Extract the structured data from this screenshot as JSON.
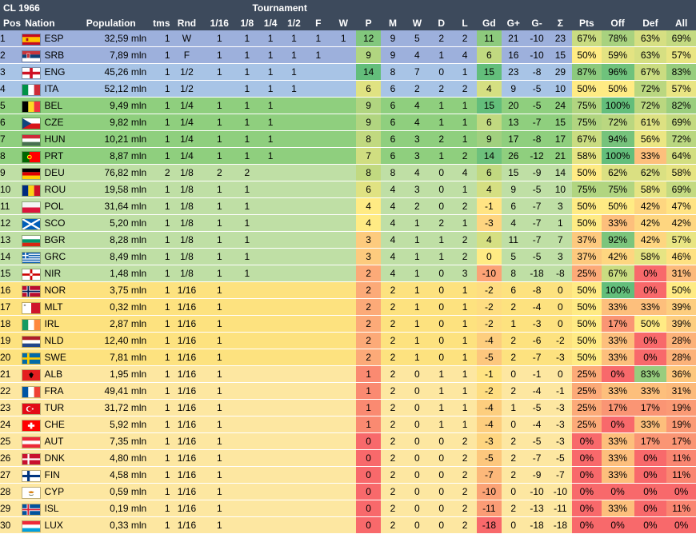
{
  "title": "CL 1966",
  "tournament_label": "Tournament",
  "columns": {
    "pos": "Pos",
    "nation": "Nation",
    "population": "Population",
    "tms": "tms",
    "rnd": "Rnd",
    "r16": "1/16",
    "r8": "1/8",
    "r4": "1/4",
    "r2": "1/2",
    "f": "F",
    "w": "W",
    "p": "P",
    "m": "M",
    "wins": "W",
    "d": "D",
    "l": "L",
    "gd": "Gd",
    "gplus": "G+",
    "gminus": "G-",
    "sigma": "Σ",
    "pts": "Pts",
    "off": "Off",
    "def": "Def",
    "all": "All"
  },
  "colors": {
    "header": "#3d4a5c",
    "tier_final": "#9db0dc",
    "tier_semi": "#a8c4e6",
    "tier_quarter": "#8fcf7e",
    "tier_r8": "#bfdfa5",
    "tier_r16_win": "#fde27f",
    "tier_r16_loss": "#fde7a1",
    "heat_green": "#63be7b",
    "heat_yellow": "#ffeb84",
    "heat_red": "#f8696b"
  },
  "rows": [
    {
      "pos": "1",
      "flag": "flag-spain",
      "nation": "ESP",
      "population": "32,59 mln",
      "tms": "1",
      "rnd": "W",
      "r16": "1",
      "r8": "1",
      "r4": "1",
      "r2": "1",
      "f": "1",
      "w": "1",
      "p": "12",
      "m": "9",
      "wins": "5",
      "d": "2",
      "l": "2",
      "gd": "11",
      "gplus": "21",
      "gminus": "-10",
      "sigma": "23",
      "pts": "67%",
      "off": "78%",
      "def": "63%",
      "all": "69%"
    },
    {
      "pos": "2",
      "flag": "flag-serbia",
      "nation": "SRB",
      "population": "7,89 mln",
      "tms": "1",
      "rnd": "F",
      "r16": "1",
      "r8": "1",
      "r4": "1",
      "r2": "1",
      "f": "1",
      "w": "",
      "p": "9",
      "m": "9",
      "wins": "4",
      "d": "1",
      "l": "4",
      "gd": "6",
      "gplus": "16",
      "gminus": "-10",
      "sigma": "15",
      "pts": "50%",
      "off": "59%",
      "def": "63%",
      "all": "57%"
    },
    {
      "pos": "3",
      "flag": "flag-england",
      "nation": "ENG",
      "population": "45,26 mln",
      "tms": "1",
      "rnd": "1/2",
      "r16": "1",
      "r8": "1",
      "r4": "1",
      "r2": "1",
      "f": "",
      "w": "",
      "p": "14",
      "m": "8",
      "wins": "7",
      "d": "0",
      "l": "1",
      "gd": "15",
      "gplus": "23",
      "gminus": "-8",
      "sigma": "29",
      "pts": "87%",
      "off": "96%",
      "def": "67%",
      "all": "83%"
    },
    {
      "pos": "4",
      "flag": "flag-italy",
      "nation": "ITA",
      "population": "52,12 mln",
      "tms": "1",
      "rnd": "1/2",
      "r16": "",
      "r8": "1",
      "r4": "1",
      "r2": "1",
      "f": "",
      "w": "",
      "p": "6",
      "m": "6",
      "wins": "2",
      "d": "2",
      "l": "2",
      "gd": "4",
      "gplus": "9",
      "gminus": "-5",
      "sigma": "10",
      "pts": "50%",
      "off": "50%",
      "def": "72%",
      "all": "57%"
    },
    {
      "pos": "5",
      "flag": "flag-belgium",
      "nation": "BEL",
      "population": "9,49 mln",
      "tms": "1",
      "rnd": "1/4",
      "r16": "1",
      "r8": "1",
      "r4": "1",
      "r2": "",
      "f": "",
      "w": "",
      "p": "9",
      "m": "6",
      "wins": "4",
      "d": "1",
      "l": "1",
      "gd": "15",
      "gplus": "20",
      "gminus": "-5",
      "sigma": "24",
      "pts": "75%",
      "off": "100%",
      "def": "72%",
      "all": "82%"
    },
    {
      "pos": "6",
      "flag": "flag-czech",
      "nation": "CZE",
      "population": "9,82 mln",
      "tms": "1",
      "rnd": "1/4",
      "r16": "1",
      "r8": "1",
      "r4": "1",
      "r2": "",
      "f": "",
      "w": "",
      "p": "9",
      "m": "6",
      "wins": "4",
      "d": "1",
      "l": "1",
      "gd": "6",
      "gplus": "13",
      "gminus": "-7",
      "sigma": "15",
      "pts": "75%",
      "off": "72%",
      "def": "61%",
      "all": "69%"
    },
    {
      "pos": "7",
      "flag": "flag-hungary",
      "nation": "HUN",
      "population": "10,21 mln",
      "tms": "1",
      "rnd": "1/4",
      "r16": "1",
      "r8": "1",
      "r4": "1",
      "r2": "",
      "f": "",
      "w": "",
      "p": "8",
      "m": "6",
      "wins": "3",
      "d": "2",
      "l": "1",
      "gd": "9",
      "gplus": "17",
      "gminus": "-8",
      "sigma": "17",
      "pts": "67%",
      "off": "94%",
      "def": "56%",
      "all": "72%"
    },
    {
      "pos": "8",
      "flag": "flag-portugal",
      "nation": "PRT",
      "population": "8,87 mln",
      "tms": "1",
      "rnd": "1/4",
      "r16": "1",
      "r8": "1",
      "r4": "1",
      "r2": "",
      "f": "",
      "w": "",
      "p": "7",
      "m": "6",
      "wins": "3",
      "d": "1",
      "l": "2",
      "gd": "14",
      "gplus": "26",
      "gminus": "-12",
      "sigma": "21",
      "pts": "58%",
      "off": "100%",
      "def": "33%",
      "all": "64%"
    },
    {
      "pos": "9",
      "flag": "flag-germany",
      "nation": "DEU",
      "population": "76,82 mln",
      "tms": "2",
      "rnd": "1/8",
      "r16": "2",
      "r8": "2",
      "r4": "",
      "r2": "",
      "f": "",
      "w": "",
      "p": "8",
      "m": "8",
      "wins": "4",
      "d": "0",
      "l": "4",
      "gd": "6",
      "gplus": "15",
      "gminus": "-9",
      "sigma": "14",
      "pts": "50%",
      "off": "62%",
      "def": "62%",
      "all": "58%"
    },
    {
      "pos": "10",
      "flag": "flag-romania",
      "nation": "ROU",
      "population": "19,58 mln",
      "tms": "1",
      "rnd": "1/8",
      "r16": "1",
      "r8": "1",
      "r4": "",
      "r2": "",
      "f": "",
      "w": "",
      "p": "6",
      "m": "4",
      "wins": "3",
      "d": "0",
      "l": "1",
      "gd": "4",
      "gplus": "9",
      "gminus": "-5",
      "sigma": "10",
      "pts": "75%",
      "off": "75%",
      "def": "58%",
      "all": "69%"
    },
    {
      "pos": "11",
      "flag": "flag-poland",
      "nation": "POL",
      "population": "31,64 mln",
      "tms": "1",
      "rnd": "1/8",
      "r16": "1",
      "r8": "1",
      "r4": "",
      "r2": "",
      "f": "",
      "w": "",
      "p": "4",
      "m": "4",
      "wins": "2",
      "d": "0",
      "l": "2",
      "gd": "-1",
      "gplus": "6",
      "gminus": "-7",
      "sigma": "3",
      "pts": "50%",
      "off": "50%",
      "def": "42%",
      "all": "47%"
    },
    {
      "pos": "12",
      "flag": "flag-scotland",
      "nation": "SCO",
      "population": "5,20 mln",
      "tms": "1",
      "rnd": "1/8",
      "r16": "1",
      "r8": "1",
      "r4": "",
      "r2": "",
      "f": "",
      "w": "",
      "p": "4",
      "m": "4",
      "wins": "1",
      "d": "2",
      "l": "1",
      "gd": "-3",
      "gplus": "4",
      "gminus": "-7",
      "sigma": "1",
      "pts": "50%",
      "off": "33%",
      "def": "42%",
      "all": "42%"
    },
    {
      "pos": "13",
      "flag": "flag-bulgaria",
      "nation": "BGR",
      "population": "8,28 mln",
      "tms": "1",
      "rnd": "1/8",
      "r16": "1",
      "r8": "1",
      "r4": "",
      "r2": "",
      "f": "",
      "w": "",
      "p": "3",
      "m": "4",
      "wins": "1",
      "d": "1",
      "l": "2",
      "gd": "4",
      "gplus": "11",
      "gminus": "-7",
      "sigma": "7",
      "pts": "37%",
      "off": "92%",
      "def": "42%",
      "all": "57%"
    },
    {
      "pos": "14",
      "flag": "flag-greece",
      "nation": "GRC",
      "population": "8,49 mln",
      "tms": "1",
      "rnd": "1/8",
      "r16": "1",
      "r8": "1",
      "r4": "",
      "r2": "",
      "f": "",
      "w": "",
      "p": "3",
      "m": "4",
      "wins": "1",
      "d": "1",
      "l": "2",
      "gd": "0",
      "gplus": "5",
      "gminus": "-5",
      "sigma": "3",
      "pts": "37%",
      "off": "42%",
      "def": "58%",
      "all": "46%"
    },
    {
      "pos": "15",
      "flag": "flag-northern-ireland",
      "nation": "NIR",
      "population": "1,48 mln",
      "tms": "1",
      "rnd": "1/8",
      "r16": "1",
      "r8": "1",
      "r4": "",
      "r2": "",
      "f": "",
      "w": "",
      "p": "2",
      "m": "4",
      "wins": "1",
      "d": "0",
      "l": "3",
      "gd": "-10",
      "gplus": "8",
      "gminus": "-18",
      "sigma": "-8",
      "pts": "25%",
      "off": "67%",
      "def": "0%",
      "all": "31%"
    },
    {
      "pos": "16",
      "flag": "flag-norway",
      "nation": "NOR",
      "population": "3,75 mln",
      "tms": "1",
      "rnd": "1/16",
      "r16": "1",
      "r8": "",
      "r4": "",
      "r2": "",
      "f": "",
      "w": "",
      "p": "2",
      "m": "2",
      "wins": "1",
      "d": "0",
      "l": "1",
      "gd": "-2",
      "gplus": "6",
      "gminus": "-8",
      "sigma": "0",
      "pts": "50%",
      "off": "100%",
      "def": "0%",
      "all": "50%"
    },
    {
      "pos": "17",
      "flag": "flag-malta",
      "nation": "MLT",
      "population": "0,32 mln",
      "tms": "1",
      "rnd": "1/16",
      "r16": "1",
      "r8": "",
      "r4": "",
      "r2": "",
      "f": "",
      "w": "",
      "p": "2",
      "m": "2",
      "wins": "1",
      "d": "0",
      "l": "1",
      "gd": "-2",
      "gplus": "2",
      "gminus": "-4",
      "sigma": "0",
      "pts": "50%",
      "off": "33%",
      "def": "33%",
      "all": "39%"
    },
    {
      "pos": "18",
      "flag": "flag-ireland",
      "nation": "IRL",
      "population": "2,87 mln",
      "tms": "1",
      "rnd": "1/16",
      "r16": "1",
      "r8": "",
      "r4": "",
      "r2": "",
      "f": "",
      "w": "",
      "p": "2",
      "m": "2",
      "wins": "1",
      "d": "0",
      "l": "1",
      "gd": "-2",
      "gplus": "1",
      "gminus": "-3",
      "sigma": "0",
      "pts": "50%",
      "off": "17%",
      "def": "50%",
      "all": "39%"
    },
    {
      "pos": "19",
      "flag": "flag-netherlands",
      "nation": "NLD",
      "population": "12,40 mln",
      "tms": "1",
      "rnd": "1/16",
      "r16": "1",
      "r8": "",
      "r4": "",
      "r2": "",
      "f": "",
      "w": "",
      "p": "2",
      "m": "2",
      "wins": "1",
      "d": "0",
      "l": "1",
      "gd": "-4",
      "gplus": "2",
      "gminus": "-6",
      "sigma": "-2",
      "pts": "50%",
      "off": "33%",
      "def": "0%",
      "all": "28%"
    },
    {
      "pos": "20",
      "flag": "flag-sweden",
      "nation": "SWE",
      "population": "7,81 mln",
      "tms": "1",
      "rnd": "1/16",
      "r16": "1",
      "r8": "",
      "r4": "",
      "r2": "",
      "f": "",
      "w": "",
      "p": "2",
      "m": "2",
      "wins": "1",
      "d": "0",
      "l": "1",
      "gd": "-5",
      "gplus": "2",
      "gminus": "-7",
      "sigma": "-3",
      "pts": "50%",
      "off": "33%",
      "def": "0%",
      "all": "28%"
    },
    {
      "pos": "21",
      "flag": "flag-albania",
      "nation": "ALB",
      "population": "1,95 mln",
      "tms": "1",
      "rnd": "1/16",
      "r16": "1",
      "r8": "",
      "r4": "",
      "r2": "",
      "f": "",
      "w": "",
      "p": "1",
      "m": "2",
      "wins": "0",
      "d": "1",
      "l": "1",
      "gd": "-1",
      "gplus": "0",
      "gminus": "-1",
      "sigma": "0",
      "pts": "25%",
      "off": "0%",
      "def": "83%",
      "all": "36%"
    },
    {
      "pos": "22",
      "flag": "flag-france",
      "nation": "FRA",
      "population": "49,41 mln",
      "tms": "1",
      "rnd": "1/16",
      "r16": "1",
      "r8": "",
      "r4": "",
      "r2": "",
      "f": "",
      "w": "",
      "p": "1",
      "m": "2",
      "wins": "0",
      "d": "1",
      "l": "1",
      "gd": "-2",
      "gplus": "2",
      "gminus": "-4",
      "sigma": "-1",
      "pts": "25%",
      "off": "33%",
      "def": "33%",
      "all": "31%"
    },
    {
      "pos": "23",
      "flag": "flag-turkey",
      "nation": "TUR",
      "population": "31,72 mln",
      "tms": "1",
      "rnd": "1/16",
      "r16": "1",
      "r8": "",
      "r4": "",
      "r2": "",
      "f": "",
      "w": "",
      "p": "1",
      "m": "2",
      "wins": "0",
      "d": "1",
      "l": "1",
      "gd": "-4",
      "gplus": "1",
      "gminus": "-5",
      "sigma": "-3",
      "pts": "25%",
      "off": "17%",
      "def": "17%",
      "all": "19%"
    },
    {
      "pos": "24",
      "flag": "flag-switzerland",
      "nation": "CHE",
      "population": "5,92 mln",
      "tms": "1",
      "rnd": "1/16",
      "r16": "1",
      "r8": "",
      "r4": "",
      "r2": "",
      "f": "",
      "w": "",
      "p": "1",
      "m": "2",
      "wins": "0",
      "d": "1",
      "l": "1",
      "gd": "-4",
      "gplus": "0",
      "gminus": "-4",
      "sigma": "-3",
      "pts": "25%",
      "off": "0%",
      "def": "33%",
      "all": "19%"
    },
    {
      "pos": "25",
      "flag": "flag-austria",
      "nation": "AUT",
      "population": "7,35 mln",
      "tms": "1",
      "rnd": "1/16",
      "r16": "1",
      "r8": "",
      "r4": "",
      "r2": "",
      "f": "",
      "w": "",
      "p": "0",
      "m": "2",
      "wins": "0",
      "d": "0",
      "l": "2",
      "gd": "-3",
      "gplus": "2",
      "gminus": "-5",
      "sigma": "-3",
      "pts": "0%",
      "off": "33%",
      "def": "17%",
      "all": "17%"
    },
    {
      "pos": "26",
      "flag": "flag-denmark",
      "nation": "DNK",
      "population": "4,80 mln",
      "tms": "1",
      "rnd": "1/16",
      "r16": "1",
      "r8": "",
      "r4": "",
      "r2": "",
      "f": "",
      "w": "",
      "p": "0",
      "m": "2",
      "wins": "0",
      "d": "0",
      "l": "2",
      "gd": "-5",
      "gplus": "2",
      "gminus": "-7",
      "sigma": "-5",
      "pts": "0%",
      "off": "33%",
      "def": "0%",
      "all": "11%"
    },
    {
      "pos": "27",
      "flag": "flag-finland",
      "nation": "FIN",
      "population": "4,58 mln",
      "tms": "1",
      "rnd": "1/16",
      "r16": "1",
      "r8": "",
      "r4": "",
      "r2": "",
      "f": "",
      "w": "",
      "p": "0",
      "m": "2",
      "wins": "0",
      "d": "0",
      "l": "2",
      "gd": "-7",
      "gplus": "2",
      "gminus": "-9",
      "sigma": "-7",
      "pts": "0%",
      "off": "33%",
      "def": "0%",
      "all": "11%"
    },
    {
      "pos": "28",
      "flag": "flag-cyprus",
      "nation": "CYP",
      "population": "0,59 mln",
      "tms": "1",
      "rnd": "1/16",
      "r16": "1",
      "r8": "",
      "r4": "",
      "r2": "",
      "f": "",
      "w": "",
      "p": "0",
      "m": "2",
      "wins": "0",
      "d": "0",
      "l": "2",
      "gd": "-10",
      "gplus": "0",
      "gminus": "-10",
      "sigma": "-10",
      "pts": "0%",
      "off": "0%",
      "def": "0%",
      "all": "0%"
    },
    {
      "pos": "29",
      "flag": "flag-iceland",
      "nation": "ISL",
      "population": "0,19 mln",
      "tms": "1",
      "rnd": "1/16",
      "r16": "1",
      "r8": "",
      "r4": "",
      "r2": "",
      "f": "",
      "w": "",
      "p": "0",
      "m": "2",
      "wins": "0",
      "d": "0",
      "l": "2",
      "gd": "-11",
      "gplus": "2",
      "gminus": "-13",
      "sigma": "-11",
      "pts": "0%",
      "off": "33%",
      "def": "0%",
      "all": "11%"
    },
    {
      "pos": "30",
      "flag": "flag-luxembourg",
      "nation": "LUX",
      "population": "0,33 mln",
      "tms": "1",
      "rnd": "1/16",
      "r16": "1",
      "r8": "",
      "r4": "",
      "r2": "",
      "f": "",
      "w": "",
      "p": "0",
      "m": "2",
      "wins": "0",
      "d": "0",
      "l": "2",
      "gd": "-18",
      "gplus": "0",
      "gminus": "-18",
      "sigma": "-18",
      "pts": "0%",
      "off": "0%",
      "def": "0%",
      "all": "0%"
    }
  ]
}
